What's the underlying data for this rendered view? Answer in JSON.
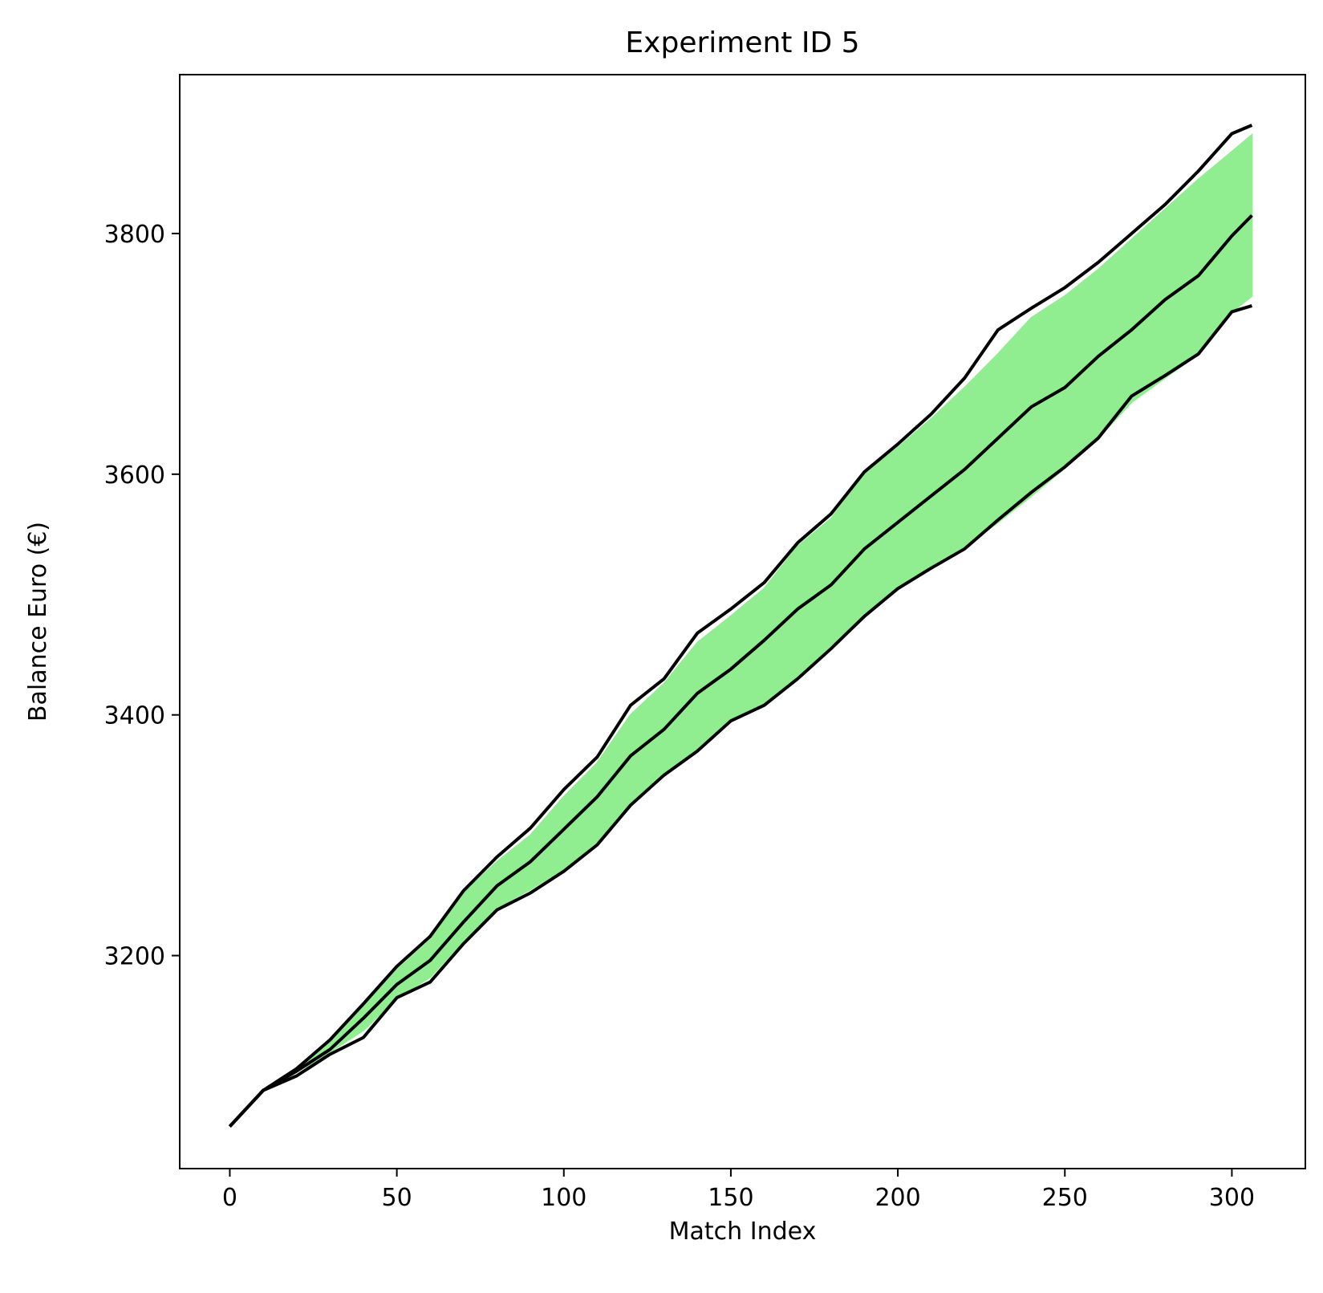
{
  "chart_data": {
    "type": "line",
    "title": "Experiment ID 5",
    "xlabel": "Match Index",
    "ylabel": "Balance Euro (€)",
    "xlim": [
      -15,
      322
    ],
    "ylim": [
      3023,
      3932
    ],
    "x_ticks": [
      0,
      50,
      100,
      150,
      200,
      250,
      300
    ],
    "y_ticks": [
      3200,
      3400,
      3600,
      3800
    ],
    "grid": false,
    "legend": "none",
    "band": {
      "name": "",
      "color": "#90ee90",
      "x": [
        0,
        10,
        20,
        30,
        40,
        50,
        60,
        70,
        80,
        90,
        100,
        110,
        120,
        130,
        140,
        150,
        160,
        170,
        180,
        190,
        200,
        210,
        220,
        230,
        240,
        250,
        260,
        270,
        280,
        290,
        300,
        306
      ],
      "lower": [
        3058,
        3088,
        3103,
        3120,
        3138,
        3165,
        3182,
        3213,
        3240,
        3255,
        3272,
        3295,
        3325,
        3352,
        3372,
        3395,
        3410,
        3432,
        3458,
        3483,
        3505,
        3522,
        3540,
        3560,
        3582,
        3605,
        3630,
        3660,
        3680,
        3700,
        3735,
        3748
      ],
      "upper": [
        3058,
        3088,
        3106,
        3128,
        3158,
        3188,
        3213,
        3252,
        3278,
        3300,
        3332,
        3360,
        3400,
        3426,
        3460,
        3482,
        3505,
        3540,
        3563,
        3600,
        3622,
        3646,
        3672,
        3700,
        3730,
        3748,
        3770,
        3795,
        3820,
        3845,
        3868,
        3882
      ]
    },
    "series": [
      {
        "name": "",
        "color": "#000000",
        "x": [
          0,
          10,
          20,
          30,
          40,
          50,
          60,
          70,
          80,
          90,
          100,
          110,
          120,
          130,
          140,
          150,
          160,
          170,
          180,
          190,
          200,
          210,
          220,
          230,
          240,
          250,
          260,
          270,
          280,
          290,
          300,
          306
        ],
        "y": [
          3058,
          3088,
          3106,
          3130,
          3160,
          3191,
          3216,
          3254,
          3282,
          3306,
          3338,
          3365,
          3408,
          3430,
          3468,
          3488,
          3510,
          3543,
          3567,
          3602,
          3625,
          3650,
          3680,
          3720,
          3738,
          3755,
          3776,
          3800,
          3824,
          3852,
          3883,
          3890
        ]
      },
      {
        "name": "",
        "color": "#000000",
        "x": [
          0,
          10,
          20,
          30,
          40,
          50,
          60,
          70,
          80,
          90,
          100,
          110,
          120,
          130,
          140,
          150,
          160,
          170,
          180,
          190,
          200,
          210,
          220,
          230,
          240,
          250,
          260,
          270,
          280,
          290,
          300,
          306
        ],
        "y": [
          3058,
          3088,
          3104,
          3122,
          3148,
          3176,
          3196,
          3228,
          3258,
          3278,
          3305,
          3332,
          3366,
          3388,
          3418,
          3438,
          3462,
          3488,
          3508,
          3538,
          3560,
          3582,
          3604,
          3630,
          3656,
          3672,
          3698,
          3720,
          3745,
          3765,
          3798,
          3815
        ]
      },
      {
        "name": "",
        "color": "#000000",
        "x": [
          0,
          10,
          20,
          30,
          40,
          50,
          60,
          70,
          80,
          90,
          100,
          110,
          120,
          130,
          140,
          150,
          160,
          170,
          180,
          190,
          200,
          210,
          220,
          230,
          240,
          250,
          260,
          270,
          280,
          290,
          300,
          306
        ],
        "y": [
          3058,
          3088,
          3100,
          3118,
          3132,
          3165,
          3178,
          3210,
          3238,
          3252,
          3270,
          3292,
          3325,
          3350,
          3370,
          3395,
          3408,
          3430,
          3455,
          3482,
          3505,
          3522,
          3538,
          3562,
          3585,
          3606,
          3630,
          3665,
          3682,
          3700,
          3735,
          3740
        ]
      }
    ]
  }
}
